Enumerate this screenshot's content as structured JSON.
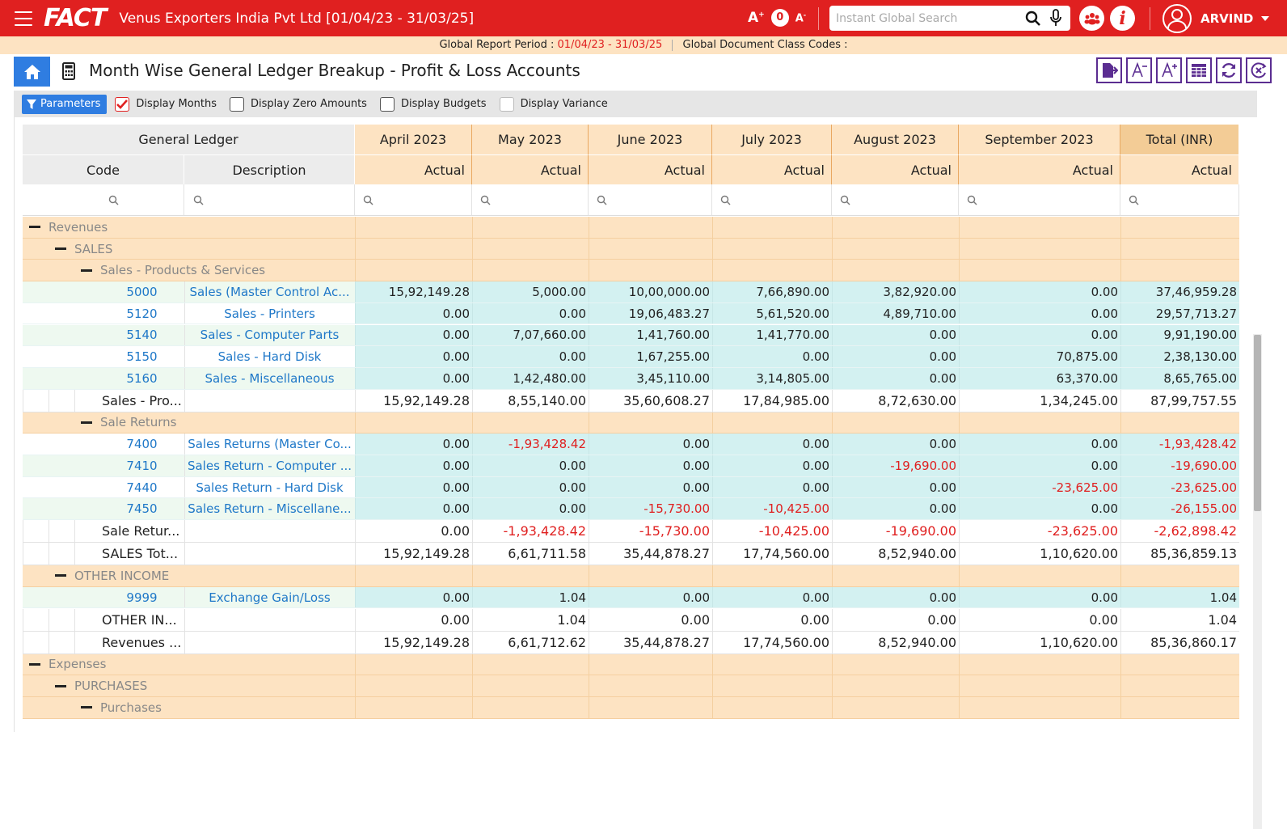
{
  "app": {
    "logo": "FACT",
    "company": "Venus Exporters India Pvt Ltd [01/04/23 - 31/03/25]",
    "font_count": "0",
    "search_placeholder": "Instant Global Search",
    "user_name": "ARVIND",
    "brand_color": "#e02020",
    "accent_color": "#2f7de1"
  },
  "period_bar": {
    "label": "Global Report Period :",
    "period": "01/04/23 - 31/03/25",
    "doc_class_label": "Global Document Class Codes :"
  },
  "page": {
    "title": "Month Wise General Ledger Breakup - Profit & Loss Accounts"
  },
  "params": {
    "button_label": "Parameters",
    "options": [
      {
        "label": "Display Months",
        "checked": true
      },
      {
        "label": "Display Zero Amounts",
        "checked": false
      },
      {
        "label": "Display Budgets",
        "checked": false
      },
      {
        "label": "Display Variance",
        "checked": false
      }
    ]
  },
  "grid": {
    "gl_header": "General Ledger",
    "code_header": "Code",
    "desc_header": "Description",
    "columns": [
      "April 2023",
      "May 2023",
      "June 2023",
      "July 2023",
      "August 2023",
      "September 2023",
      "Total (INR)"
    ],
    "subheader": "Actual",
    "rows": [
      {
        "type": "group",
        "level": 0,
        "label": "Revenues"
      },
      {
        "type": "group",
        "level": 1,
        "label": "SALES"
      },
      {
        "type": "group",
        "level": 2,
        "label": "Sales - Products & Services"
      },
      {
        "type": "detail",
        "code": "5000",
        "desc": "Sales (Master Control Ac...",
        "values": [
          "15,92,149.28",
          "5,000.00",
          "10,00,000.00",
          "7,66,890.00",
          "3,82,920.00",
          "0.00",
          "37,46,959.28"
        ]
      },
      {
        "type": "detail",
        "code": "5120",
        "desc": "Sales - Printers",
        "values": [
          "0.00",
          "0.00",
          "19,06,483.27",
          "5,61,520.00",
          "4,89,710.00",
          "0.00",
          "29,57,713.27"
        ]
      },
      {
        "type": "detail",
        "code": "5140",
        "desc": "Sales - Computer Parts",
        "values": [
          "0.00",
          "7,07,660.00",
          "1,41,760.00",
          "1,41,770.00",
          "0.00",
          "0.00",
          "9,91,190.00"
        ]
      },
      {
        "type": "detail",
        "code": "5150",
        "desc": "Sales - Hard Disk",
        "values": [
          "0.00",
          "0.00",
          "1,67,255.00",
          "0.00",
          "0.00",
          "70,875.00",
          "2,38,130.00"
        ]
      },
      {
        "type": "detail",
        "code": "5160",
        "desc": "Sales - Miscellaneous",
        "values": [
          "0.00",
          "1,42,480.00",
          "3,45,110.00",
          "3,14,805.00",
          "0.00",
          "63,370.00",
          "8,65,765.00"
        ]
      },
      {
        "type": "subtotal",
        "level": 2,
        "label": "Sales - Pro...",
        "values": [
          "15,92,149.28",
          "8,55,140.00",
          "35,60,608.27",
          "17,84,985.00",
          "8,72,630.00",
          "1,34,245.00",
          "87,99,757.55"
        ]
      },
      {
        "type": "group",
        "level": 2,
        "label": "Sale Returns"
      },
      {
        "type": "detail",
        "code": "7400",
        "desc": "Sales Returns (Master Co...",
        "values": [
          "0.00",
          "-1,93,428.42",
          "0.00",
          "0.00",
          "0.00",
          "0.00",
          "-1,93,428.42"
        ]
      },
      {
        "type": "detail",
        "code": "7410",
        "desc": "Sales Return - Computer ...",
        "values": [
          "0.00",
          "0.00",
          "0.00",
          "0.00",
          "-19,690.00",
          "0.00",
          "-19,690.00"
        ]
      },
      {
        "type": "detail",
        "code": "7440",
        "desc": "Sales Return - Hard Disk",
        "values": [
          "0.00",
          "0.00",
          "0.00",
          "0.00",
          "0.00",
          "-23,625.00",
          "-23,625.00"
        ]
      },
      {
        "type": "detail",
        "code": "7450",
        "desc": "Sales Return - Miscellane...",
        "values": [
          "0.00",
          "0.00",
          "-15,730.00",
          "-10,425.00",
          "0.00",
          "0.00",
          "-26,155.00"
        ]
      },
      {
        "type": "subtotal",
        "level": 2,
        "label": "Sale Retur...",
        "values": [
          "0.00",
          "-1,93,428.42",
          "-15,730.00",
          "-10,425.00",
          "-19,690.00",
          "-23,625.00",
          "-2,62,898.42"
        ]
      },
      {
        "type": "subtotal",
        "level": 1,
        "label": "SALES Tot...",
        "values": [
          "15,92,149.28",
          "6,61,711.58",
          "35,44,878.27",
          "17,74,560.00",
          "8,52,940.00",
          "1,10,620.00",
          "85,36,859.13"
        ]
      },
      {
        "type": "group",
        "level": 1,
        "label": "OTHER INCOME"
      },
      {
        "type": "detail",
        "code": "9999",
        "desc": "Exchange Gain/Loss",
        "values": [
          "0.00",
          "1.04",
          "0.00",
          "0.00",
          "0.00",
          "0.00",
          "1.04"
        ]
      },
      {
        "type": "subtotal",
        "level": 1,
        "label": "OTHER IN...",
        "values": [
          "0.00",
          "1.04",
          "0.00",
          "0.00",
          "0.00",
          "0.00",
          "1.04"
        ]
      },
      {
        "type": "subtotal",
        "level": 0,
        "label": "Revenues ...",
        "values": [
          "15,92,149.28",
          "6,61,712.62",
          "35,44,878.27",
          "17,74,560.00",
          "8,52,940.00",
          "1,10,620.00",
          "85,36,860.17"
        ]
      },
      {
        "type": "group",
        "level": 0,
        "label": "Expenses"
      },
      {
        "type": "group",
        "level": 1,
        "label": "PURCHASES"
      },
      {
        "type": "group",
        "level": 2,
        "label": "Purchases"
      }
    ]
  }
}
